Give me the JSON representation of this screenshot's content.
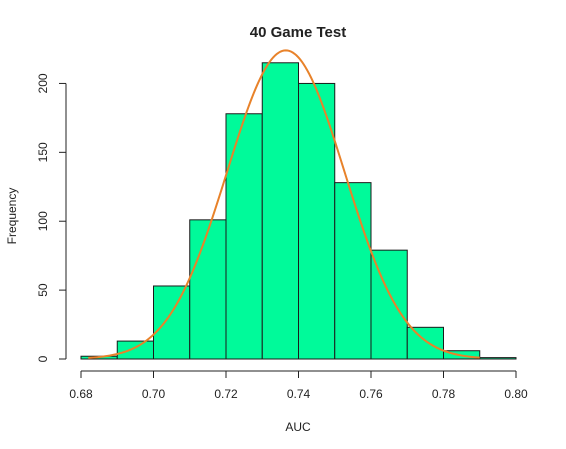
{
  "chart_data": {
    "type": "bar",
    "subtype": "histogram",
    "title": "40 Game Test",
    "xlabel": "AUC",
    "ylabel": "Frequency",
    "bin_edges": [
      0.68,
      0.69,
      0.7,
      0.71,
      0.72,
      0.73,
      0.74,
      0.75,
      0.76,
      0.77,
      0.78,
      0.79,
      0.8
    ],
    "values": [
      2,
      13,
      53,
      101,
      178,
      215,
      200,
      128,
      79,
      23,
      6,
      1
    ],
    "xlim": [
      0.68,
      0.8
    ],
    "ylim": [
      0,
      225
    ],
    "x_ticks": [
      0.68,
      0.7,
      0.72,
      0.74,
      0.76,
      0.78,
      0.8
    ],
    "x_tick_labels": [
      "0.68",
      "0.70",
      "0.72",
      "0.74",
      "0.76",
      "0.78",
      "0.80"
    ],
    "y_ticks": [
      0,
      50,
      100,
      150,
      200
    ],
    "y_tick_labels": [
      "0",
      "50",
      "100",
      "150",
      "200"
    ],
    "overlay_curve": {
      "type": "normal_density",
      "mean": 0.7365,
      "sd": 0.0162,
      "peak_frequency": 224,
      "x_range": [
        0.682,
        0.79
      ]
    },
    "grid": false,
    "legend": "none",
    "colors": {
      "bar_fill": "#00FA9A",
      "bar_stroke": "#1A1A1A",
      "curve": "#E8822A",
      "axis": "#222222",
      "text": "#222222"
    }
  }
}
